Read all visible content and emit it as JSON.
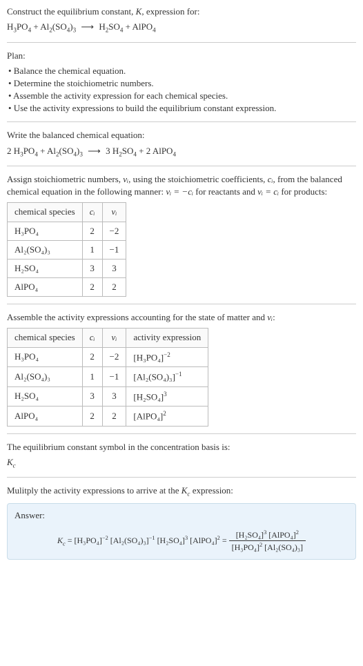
{
  "intro": {
    "prompt": "Construct the equilibrium constant, ",
    "K": "K",
    "prompt2": ", expression for:",
    "eq_lhs_1": "H",
    "eq_lhs_1_sub": "3",
    "eq_lhs_1b": "PO",
    "eq_lhs_1b_sub": "4",
    "plus": " + ",
    "eq_lhs_2": "Al",
    "eq_lhs_2_sub": "2",
    "eq_lhs_2b": "(SO",
    "eq_lhs_2b_sub": "4",
    "eq_lhs_2c": ")",
    "eq_lhs_2c_sub": "3",
    "arrow": " ⟶ ",
    "eq_rhs_1": "H",
    "eq_rhs_1_sub": "2",
    "eq_rhs_1b": "SO",
    "eq_rhs_1b_sub": "4",
    "eq_rhs_2": "AlPO",
    "eq_rhs_2_sub": "4"
  },
  "plan": {
    "title": "Plan:",
    "items": [
      "• Balance the chemical equation.",
      "• Determine the stoichiometric numbers.",
      "• Assemble the activity expression for each chemical species.",
      "• Use the activity expressions to build the equilibrium constant expression."
    ]
  },
  "balanced": {
    "title": "Write the balanced chemical equation:",
    "c1": "2 ",
    "c2": "3 ",
    "c3": "2 "
  },
  "stoich": {
    "text1": "Assign stoichiometric numbers, ",
    "nu_i": "νᵢ",
    "text2": ", using the stoichiometric coefficients, ",
    "c_i": "cᵢ",
    "text3": ", from the balanced chemical equation in the following manner: ",
    "rel1": "νᵢ = −cᵢ",
    "text4": " for reactants and ",
    "rel2": "νᵢ = cᵢ",
    "text5": " for products:",
    "headers": [
      "chemical species",
      "cᵢ",
      "νᵢ"
    ],
    "rows": [
      {
        "sp": "H₃PO₄",
        "c": "2",
        "v": "−2"
      },
      {
        "sp": "Al₂(SO₄)₃",
        "c": "1",
        "v": "−1"
      },
      {
        "sp": "H₂SO₄",
        "c": "3",
        "v": "3"
      },
      {
        "sp": "AlPO₄",
        "c": "2",
        "v": "2"
      }
    ]
  },
  "activity": {
    "title": "Assemble the activity expressions accounting for the state of matter and ",
    "nu_i": "νᵢ",
    "colon": ":",
    "headers": [
      "chemical species",
      "cᵢ",
      "νᵢ",
      "activity expression"
    ],
    "rows": [
      {
        "sp": "H₃PO₄",
        "c": "2",
        "v": "−2",
        "ae_base": "[H₃PO₄]",
        "ae_sup": "−2"
      },
      {
        "sp": "Al₂(SO₄)₃",
        "c": "1",
        "v": "−1",
        "ae_base": "[Al₂(SO₄)₃]",
        "ae_sup": "−1"
      },
      {
        "sp": "H₂SO₄",
        "c": "3",
        "v": "3",
        "ae_base": "[H₂SO₄]",
        "ae_sup": "3"
      },
      {
        "sp": "AlPO₄",
        "c": "2",
        "v": "2",
        "ae_base": "[AlPO₄]",
        "ae_sup": "2"
      }
    ]
  },
  "kc_symbol": {
    "text": "The equilibrium constant symbol in the concentration basis is:",
    "K": "K",
    "c": "c"
  },
  "multiply": {
    "text1": "Mulitply the activity expressions to arrive at the ",
    "K": "K",
    "c": "c",
    "text2": " expression:"
  },
  "answer": {
    "label": "Answer:",
    "K": "K",
    "c": "c",
    "eq": " = ",
    "t1_base": "[H₃PO₄]",
    "t1_sup": "−2",
    "t2_base": "[Al₂(SO₄)₃]",
    "t2_sup": "−1",
    "t3_base": "[H₂SO₄]",
    "t3_sup": "3",
    "t4_base": "[AlPO₄]",
    "t4_sup": "2",
    "num1_base": "[H₂SO₄]",
    "num1_sup": "3",
    "num2_base": "[AlPO₄]",
    "num2_sup": "2",
    "den1_base": "[H₃PO₄]",
    "den1_sup": "2",
    "den2_base": "[Al₂(SO₄)₃]",
    "den2_sup": ""
  }
}
